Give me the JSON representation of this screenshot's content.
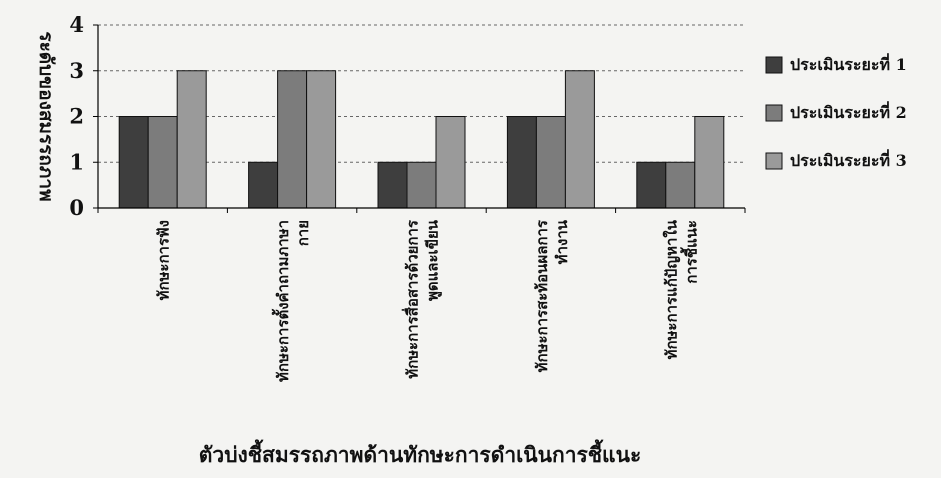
{
  "chart_data": {
    "type": "bar",
    "title": "",
    "xlabel": "ตัวบ่งชี้สมรรถภาพด้านทักษะการดำเนินการชี้แนะ",
    "ylabel": "ระดับของสมรรถภาพ",
    "ylim": [
      0,
      4
    ],
    "yticks": [
      0,
      1,
      2,
      3,
      4
    ],
    "grid": true,
    "legend_position": "right",
    "categories": [
      [
        "ทักษะการฟัง"
      ],
      [
        "ทักษะการตั้งคำถามภาษา",
        "กาย"
      ],
      [
        "ทักษะการสื่อสารด้วยการ",
        "พูดและเขียน"
      ],
      [
        "ทักษะการสะท้อนผลการ",
        "ทำงาน"
      ],
      [
        "ทักษะการแก้ปัญหาใน",
        "การชี้แนะ"
      ]
    ],
    "series": [
      {
        "name": "ประเมินระยะที่ 1",
        "color": "#3e3e3e",
        "values": [
          2,
          1,
          1,
          2,
          1
        ]
      },
      {
        "name": "ประเมินระยะที่ 2",
        "color": "#7c7c7c",
        "values": [
          2,
          3,
          1,
          2,
          1
        ]
      },
      {
        "name": "ประเมินระยะที่ 3",
        "color": "#9a9a9a",
        "values": [
          3,
          3,
          2,
          3,
          2
        ]
      }
    ]
  }
}
